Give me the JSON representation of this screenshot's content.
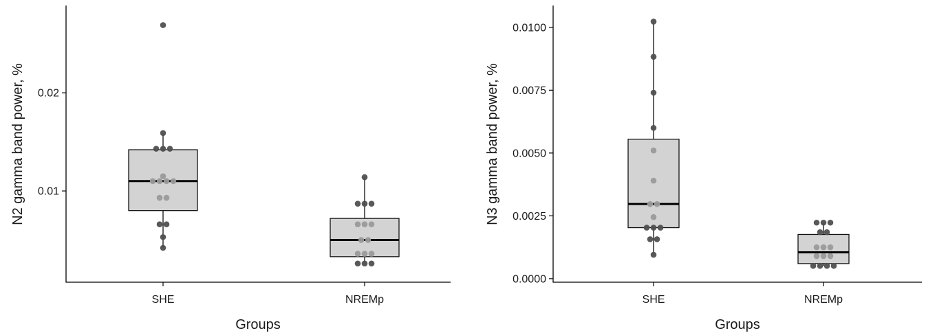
{
  "chart_data": [
    {
      "type": "box",
      "xlabel": "Groups",
      "ylabel": "N2 gamma band power, %",
      "categories": [
        "SHE",
        "NREMp"
      ],
      "yticks": [
        {
          "value": 0.01,
          "label": "0.01"
        },
        {
          "value": 0.02,
          "label": "0.02"
        }
      ],
      "ylim": [
        0.0007,
        0.0289
      ],
      "grid": false,
      "boxes": [
        {
          "group": "SHE",
          "min": 0.0042,
          "q1": 0.008,
          "median": 0.011,
          "q3": 0.0142,
          "max": 0.0159
        },
        {
          "group": "NREMp",
          "min": 0.0026,
          "q1": 0.0033,
          "median": 0.005,
          "q3": 0.0072,
          "max": 0.0114
        }
      ],
      "points": [
        {
          "group": "SHE",
          "values": [
            0.0269,
            0.0159,
            0.0143,
            0.0143,
            0.0143,
            0.0115,
            0.011,
            0.011,
            0.011,
            0.011,
            0.0093,
            0.0093,
            0.0066,
            0.0066,
            0.0053,
            0.0042
          ]
        },
        {
          "group": "NREMp",
          "values": [
            0.0114,
            0.0087,
            0.0087,
            0.0087,
            0.0066,
            0.0066,
            0.0066,
            0.005,
            0.005,
            0.0036,
            0.0036,
            0.0036,
            0.0026,
            0.0026,
            0.0026
          ]
        }
      ]
    },
    {
      "type": "box",
      "xlabel": "Groups",
      "ylabel": "N3 gamma band power, %",
      "categories": [
        "SHE",
        "NREMp"
      ],
      "yticks": [
        {
          "value": 0.0,
          "label": "0.0000"
        },
        {
          "value": 0.0025,
          "label": "0.0025"
        },
        {
          "value": 0.005,
          "label": "0.0050"
        },
        {
          "value": 0.0075,
          "label": "0.0075"
        },
        {
          "value": 0.01,
          "label": "0.0100"
        }
      ],
      "ylim": [
        -0.00014,
        0.01087
      ],
      "grid": false,
      "boxes": [
        {
          "group": "SHE",
          "min": 0.00095,
          "q1": 0.00203,
          "median": 0.00297,
          "q3": 0.00555,
          "max": 0.01023
        },
        {
          "group": "NREMp",
          "min": 0.00051,
          "q1": 0.0006,
          "median": 0.00105,
          "q3": 0.00176,
          "max": 0.00223
        }
      ],
      "points": [
        {
          "group": "SHE",
          "values": [
            0.01023,
            0.00883,
            0.0074,
            0.006,
            0.0051,
            0.0039,
            0.00297,
            0.00297,
            0.00245,
            0.00203,
            0.00203,
            0.00203,
            0.00157,
            0.00157,
            0.00095
          ]
        },
        {
          "group": "NREMp",
          "values": [
            0.00223,
            0.00223,
            0.00223,
            0.00185,
            0.00185,
            0.00125,
            0.00125,
            0.00125,
            0.0009,
            0.0009,
            0.0009,
            0.00051,
            0.00051,
            0.00051,
            0.00051
          ]
        }
      ]
    }
  ],
  "colors": {
    "box_fill": "#d3d3d3",
    "point_dark": "#505050",
    "point_light": "#9a9a9a",
    "axis": "#000000"
  }
}
